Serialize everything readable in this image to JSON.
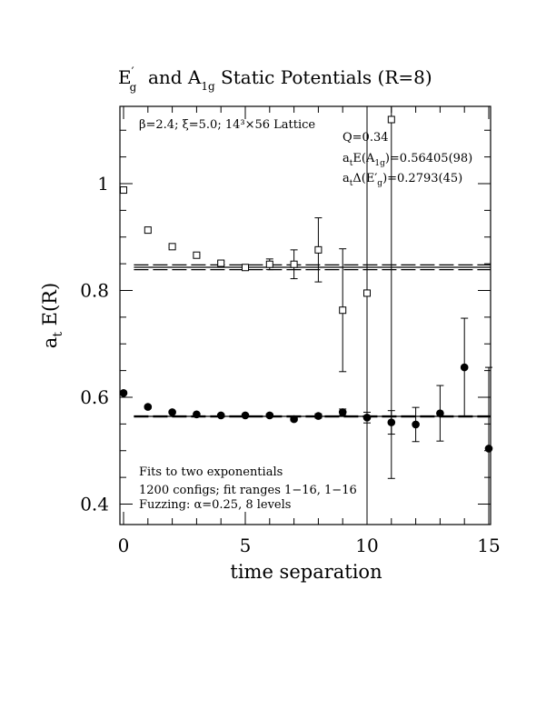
{
  "chart_data": {
    "type": "scatter",
    "title": "E′g  and A1g Static Potentials (R=8)",
    "title_parts": {
      "e": "E",
      "prime": "′",
      "e_sub": "g",
      "mid": "  and A",
      "a_sub": "1g",
      "rest": " Static Potentials (R=8)"
    },
    "xlabel": "time separation",
    "ylabel": {
      "main": "a",
      "sub": "t",
      "rest": " E(R)"
    },
    "xlim": [
      0,
      15
    ],
    "ylim": [
      0.36,
      1.15
    ],
    "xticks": [
      0,
      5,
      10,
      15
    ],
    "xtick_labels": [
      "0",
      "5",
      "10",
      "15"
    ],
    "yticks": [
      0.4,
      0.6,
      0.8,
      1.0
    ],
    "ytick_labels": [
      "0.4",
      "0.6",
      "0.8",
      "1"
    ],
    "grid": false,
    "annotations": {
      "lattice": "β=2.4; ξ=5.0; 14³×56 Lattice",
      "q": "Q=0.34",
      "fit1": {
        "pre": "a",
        "sub": "t",
        "mid": "E(A",
        "sub2": "1g",
        "post": ")=0.56405(98)"
      },
      "fit2": {
        "pre": "a",
        "sub": "t",
        "mid": "Δ(E′",
        "sub2": "g",
        "post": ")=0.2793(45)"
      },
      "fits_line1": "Fits to two exponentials",
      "fits_line2": "1200 configs; fit ranges 1−16, 1−16",
      "fits_line3": "Fuzzing: α=0.25, 8 levels"
    },
    "fit_lines": {
      "lower": {
        "center": 0.5642,
        "err": 0.001,
        "x_range": [
          0.5,
          15
        ]
      },
      "upper": {
        "center": 0.8434,
        "err": 0.0045,
        "x_range": [
          0.5,
          15
        ]
      }
    },
    "series": [
      {
        "marker": "filled-circle",
        "x": [
          0,
          1,
          2,
          3,
          4,
          5,
          6,
          7,
          8,
          9,
          10,
          11,
          12,
          13,
          14,
          15
        ],
        "y": [
          0.608,
          0.582,
          0.572,
          0.568,
          0.566,
          0.566,
          0.566,
          0.559,
          0.565,
          0.572,
          0.562,
          0.553,
          0.549,
          0.57,
          0.656,
          0.504
        ],
        "err": [
          0.002,
          0.002,
          0.002,
          0.002,
          0.002,
          0.002,
          0.003,
          0.003,
          0.004,
          0.006,
          0.01,
          0.022,
          0.032,
          0.052,
          0.092,
          0.152
        ]
      },
      {
        "marker": "open-square",
        "x": [
          0,
          1,
          2,
          3,
          4,
          5,
          6,
          7,
          8,
          9,
          10,
          11
        ],
        "y": [
          0.988,
          0.913,
          0.882,
          0.866,
          0.851,
          0.843,
          0.849,
          0.849,
          0.876,
          0.763,
          0.795,
          1.12
        ],
        "err": [
          0.001,
          0.001,
          0.002,
          0.002,
          0.003,
          0.004,
          0.01,
          0.027,
          0.06,
          0.115,
          0.44,
          0.672
        ]
      }
    ]
  }
}
